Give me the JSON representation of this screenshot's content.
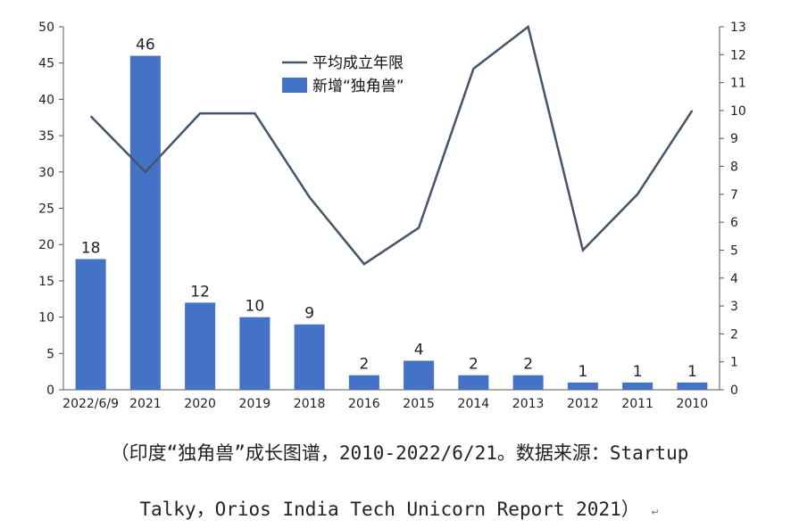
{
  "chart_data": {
    "type": "bar",
    "categories": [
      "2022/6/9",
      "2021",
      "2020",
      "2019",
      "2018",
      "2016",
      "2015",
      "2014",
      "2013",
      "2012",
      "2011",
      "2010"
    ],
    "series": [
      {
        "name": "新增“独角兽”",
        "type": "bar",
        "axis": "left",
        "color": "#4472C4",
        "values": [
          18,
          46,
          12,
          10,
          9,
          2,
          4,
          2,
          2,
          1,
          1,
          1
        ],
        "data_labels": [
          "18",
          "46",
          "12",
          "10",
          "9",
          "2",
          "4",
          "2",
          "2",
          "1",
          "1",
          "1"
        ]
      },
      {
        "name": "平均成立年限",
        "type": "line",
        "axis": "right",
        "color": "#44546A",
        "values": [
          9.8,
          7.8,
          9.9,
          9.9,
          6.9,
          4.5,
          5.8,
          11.5,
          13,
          5,
          7,
          10
        ]
      }
    ],
    "y_left": {
      "min": 0,
      "max": 50,
      "ticks": [
        0,
        5,
        10,
        15,
        20,
        25,
        30,
        35,
        40,
        45,
        50
      ]
    },
    "y_right": {
      "min": 0,
      "max": 13,
      "ticks": [
        0,
        1,
        2,
        3,
        4,
        5,
        6,
        7,
        8,
        9,
        10,
        11,
        12,
        13
      ]
    },
    "legend_position": "top-center"
  },
  "caption": {
    "line1": "（印度“独角兽”成长图谱，2010-2022/6/21。数据来源：Startup",
    "line2": "Talky，Orios India Tech Unicorn Report 2021）",
    "mark": "↵"
  }
}
